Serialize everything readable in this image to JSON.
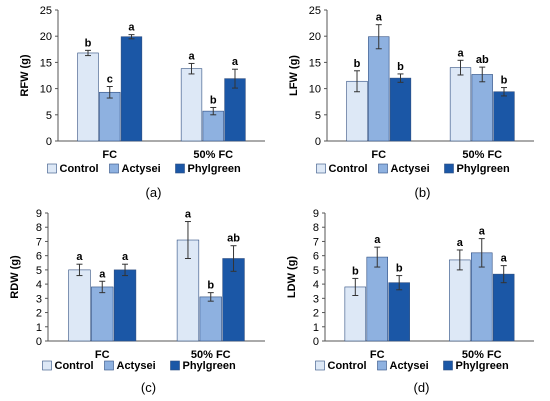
{
  "figure": {
    "legend_labels": [
      "Control",
      "Actysei",
      "Phylgreen"
    ],
    "series_colors": [
      "#dde8f6",
      "#8eb1e0",
      "#1b57a6"
    ],
    "error_bar_color": "#333333"
  },
  "chart_data": [
    {
      "type": "bar",
      "panel_label": "(a)",
      "ylabel": "RFW (g)",
      "xlabel": "",
      "ylim": [
        0,
        25
      ],
      "yticks": [
        0,
        5,
        10,
        15,
        20,
        25
      ],
      "categories": [
        "FC",
        "50% FC"
      ],
      "series": [
        {
          "name": "Control",
          "values": [
            16.8,
            13.8
          ],
          "errors": [
            0.5,
            1.0
          ],
          "letters": [
            "b",
            "a"
          ]
        },
        {
          "name": "Actysei",
          "values": [
            9.3,
            5.7
          ],
          "errors": [
            1.1,
            0.7
          ],
          "letters": [
            "c",
            "b"
          ]
        },
        {
          "name": "Phylgreen",
          "values": [
            19.9,
            11.9
          ],
          "errors": [
            0.4,
            1.8
          ],
          "letters": [
            "a",
            "a"
          ]
        }
      ],
      "legend_position": "bottom",
      "grid": false
    },
    {
      "type": "bar",
      "panel_label": "(b)",
      "ylabel": "LFW (g)",
      "xlabel": "",
      "ylim": [
        0,
        25
      ],
      "yticks": [
        0,
        5,
        10,
        15,
        20,
        25
      ],
      "categories": [
        "FC",
        "50% FC"
      ],
      "series": [
        {
          "name": "Control",
          "values": [
            11.4,
            14.0
          ],
          "errors": [
            2.0,
            1.4
          ],
          "letters": [
            "b",
            "a"
          ]
        },
        {
          "name": "Actysei",
          "values": [
            19.9,
            12.7
          ],
          "errors": [
            2.3,
            1.4
          ],
          "letters": [
            "a",
            "ab"
          ]
        },
        {
          "name": "Phylgreen",
          "values": [
            12.0,
            9.4
          ],
          "errors": [
            0.8,
            0.8
          ],
          "letters": [
            "b",
            "b"
          ]
        }
      ],
      "legend_position": "bottom",
      "grid": false
    },
    {
      "type": "bar",
      "panel_label": "(c)",
      "ylabel": "RDW (g)",
      "xlabel": "",
      "ylim": [
        0,
        9
      ],
      "yticks": [
        0,
        1,
        2,
        3,
        4,
        5,
        6,
        7,
        8,
        9
      ],
      "categories": [
        "FC",
        "50% FC"
      ],
      "series": [
        {
          "name": "Control",
          "values": [
            5.0,
            7.1
          ],
          "errors": [
            0.4,
            1.3
          ],
          "letters": [
            "a",
            "a"
          ]
        },
        {
          "name": "Actysei",
          "values": [
            3.8,
            3.1
          ],
          "errors": [
            0.4,
            0.3
          ],
          "letters": [
            "a",
            "b"
          ]
        },
        {
          "name": "Phylgreen",
          "values": [
            5.0,
            5.8
          ],
          "errors": [
            0.4,
            0.9
          ],
          "letters": [
            "a",
            "ab"
          ]
        }
      ],
      "legend_position": "bottom",
      "grid": false
    },
    {
      "type": "bar",
      "panel_label": "(d)",
      "ylabel": "LDW (g)",
      "xlabel": "",
      "ylim": [
        0,
        9
      ],
      "yticks": [
        0,
        1,
        2,
        3,
        4,
        5,
        6,
        7,
        8,
        9
      ],
      "categories": [
        "FC",
        "50% FC"
      ],
      "series": [
        {
          "name": "Control",
          "values": [
            3.8,
            5.7
          ],
          "errors": [
            0.6,
            0.7
          ],
          "letters": [
            "b",
            "a"
          ]
        },
        {
          "name": "Actysei",
          "values": [
            5.9,
            6.2
          ],
          "errors": [
            0.7,
            1.0
          ],
          "letters": [
            "a",
            "a"
          ]
        },
        {
          "name": "Phylgreen",
          "values": [
            4.1,
            4.7
          ],
          "errors": [
            0.5,
            0.6
          ],
          "letters": [
            "b",
            "a"
          ]
        }
      ],
      "legend_position": "bottom",
      "grid": false
    }
  ]
}
